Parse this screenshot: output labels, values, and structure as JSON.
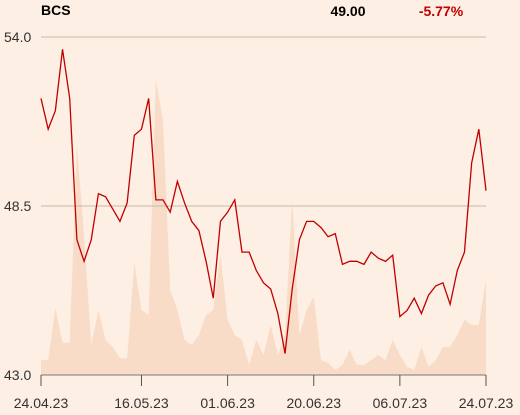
{
  "chart_data": {
    "type": "line",
    "title": "BCS",
    "last_price": "49.00",
    "change": "-5.77%",
    "change_color": "#c00000",
    "categories": [
      "24.04.23",
      null,
      null,
      null,
      null,
      null,
      null,
      null,
      null,
      null,
      null,
      null,
      null,
      null,
      "16.05.23",
      null,
      null,
      null,
      null,
      null,
      null,
      null,
      null,
      null,
      null,
      null,
      "01.06.23",
      null,
      null,
      null,
      null,
      null,
      null,
      null,
      null,
      null,
      null,
      null,
      "20.06.23",
      null,
      null,
      null,
      null,
      null,
      null,
      null,
      null,
      null,
      null,
      null,
      "06.07.23",
      null,
      null,
      null,
      null,
      null,
      null,
      null,
      null,
      null,
      null,
      null,
      "24.07.23"
    ],
    "series": [
      {
        "color": "#f8dcc8",
        "axis": "y2",
        "kind": "area",
        "values": [
          4.4,
          4.4,
          19.8,
          9.5,
          9.5,
          68,
          41.4,
          8.9,
          19.2,
          10.4,
          8.3,
          5,
          5,
          33.1,
          19.2,
          17.8,
          87.3,
          75.4,
          25.1,
          19.2,
          10.4,
          8.9,
          11.8,
          17.8,
          19.2,
          35.5,
          16.3,
          11.8,
          10.4,
          3,
          10.4,
          5.9,
          14.8,
          5.9,
          11.8,
          51.8,
          11.8,
          19.2,
          23.1,
          4.4,
          3.6,
          1.5,
          3,
          7.4,
          3,
          3,
          4.4,
          5.9,
          4.4,
          10.4,
          5.9,
          2.4,
          1.5,
          8.3,
          2.4,
          4.4,
          8.3,
          8.3,
          11.8,
          16.3,
          14.8,
          14.8,
          28.1
        ]
      },
      {
        "color": "#c00000",
        "kind": "line",
        "values": [
          52.0,
          51.0,
          51.6,
          53.6,
          52.0,
          47.4,
          46.7,
          47.4,
          48.9,
          48.8,
          48.4,
          48.0,
          48.6,
          50.8,
          51.0,
          52.0,
          48.7,
          48.7,
          48.3,
          49.3,
          48.6,
          48.0,
          47.7,
          46.7,
          45.5,
          48.0,
          48.3,
          48.7,
          47.0,
          47.0,
          46.4,
          46.0,
          45.8,
          45.0,
          43.7,
          45.8,
          47.4,
          48.0,
          48.0,
          47.8,
          47.5,
          47.6,
          46.6,
          46.7,
          46.7,
          46.6,
          47.0,
          46.8,
          46.7,
          46.9,
          44.9,
          45.1,
          45.5,
          45.0,
          45.6,
          45.9,
          46.0,
          45.3,
          46.4,
          47.0,
          49.9,
          51.0,
          49.0
        ]
      }
    ],
    "ylim": [
      43,
      54
    ],
    "yticks": [
      {
        "value": 43,
        "label": "43.0"
      },
      {
        "value": 48.5,
        "label": "48.5"
      },
      {
        "value": 54,
        "label": "54.0"
      }
    ],
    "y2lim": [
      0,
      100
    ],
    "grid": true
  }
}
